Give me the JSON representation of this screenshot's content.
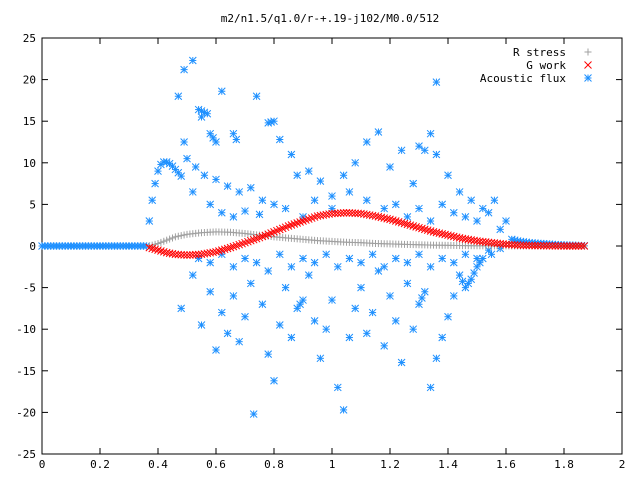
{
  "chart_data": {
    "type": "scatter",
    "title": "m2/n1.5/q1.0/r-+.19-j102/M0.0/512",
    "xlabel": "",
    "ylabel": "",
    "xlim": [
      0,
      2
    ],
    "ylim": [
      -25,
      25
    ],
    "x_ticks": [
      "0",
      "0.2",
      "0.4",
      "0.6",
      "0.8",
      "1",
      "1.2",
      "1.4",
      "1.6",
      "1.8",
      "2"
    ],
    "y_ticks": [
      "25",
      "20",
      "15",
      "10",
      "5",
      "0",
      "-5",
      "-10",
      "-15",
      "-20",
      "-25"
    ],
    "grid": false,
    "legend": "top-right",
    "series": [
      {
        "name": "R stress",
        "marker": "+",
        "color": "#a0a0a0",
        "points": [
          [
            0.37,
            0.0
          ],
          [
            0.4,
            0.3
          ],
          [
            0.43,
            0.7
          ],
          [
            0.46,
            1.1
          ],
          [
            0.5,
            1.4
          ],
          [
            0.55,
            1.6
          ],
          [
            0.6,
            1.7
          ],
          [
            0.65,
            1.65
          ],
          [
            0.7,
            1.5
          ],
          [
            0.75,
            1.3
          ],
          [
            0.8,
            1.1
          ],
          [
            0.85,
            0.95
          ],
          [
            0.9,
            0.8
          ],
          [
            0.95,
            0.65
          ],
          [
            1.0,
            0.55
          ],
          [
            1.05,
            0.45
          ],
          [
            1.1,
            0.4
          ],
          [
            1.15,
            0.3
          ],
          [
            1.2,
            0.25
          ],
          [
            1.25,
            0.2
          ],
          [
            1.3,
            0.15
          ],
          [
            1.35,
            0.1
          ],
          [
            1.4,
            0.08
          ],
          [
            1.45,
            0.05
          ],
          [
            1.5,
            0.03
          ],
          [
            1.55,
            0.02
          ],
          [
            1.6,
            0.01
          ],
          [
            1.7,
            0.0
          ],
          [
            1.8,
            0.0
          ],
          [
            1.87,
            0.0
          ]
        ]
      },
      {
        "name": "G work",
        "marker": "x",
        "color": "#ff0000",
        "points": [
          [
            0.37,
            -0.2
          ],
          [
            0.4,
            -0.5
          ],
          [
            0.43,
            -0.8
          ],
          [
            0.46,
            -1.0
          ],
          [
            0.5,
            -1.1
          ],
          [
            0.55,
            -1.0
          ],
          [
            0.6,
            -0.7
          ],
          [
            0.65,
            -0.2
          ],
          [
            0.7,
            0.4
          ],
          [
            0.75,
            1.0
          ],
          [
            0.8,
            1.7
          ],
          [
            0.85,
            2.4
          ],
          [
            0.9,
            3.0
          ],
          [
            0.95,
            3.6
          ],
          [
            1.0,
            3.9
          ],
          [
            1.05,
            4.0
          ],
          [
            1.1,
            3.9
          ],
          [
            1.15,
            3.6
          ],
          [
            1.2,
            3.2
          ],
          [
            1.25,
            2.7
          ],
          [
            1.3,
            2.2
          ],
          [
            1.35,
            1.7
          ],
          [
            1.4,
            1.3
          ],
          [
            1.45,
            0.9
          ],
          [
            1.5,
            0.6
          ],
          [
            1.55,
            0.4
          ],
          [
            1.6,
            0.2
          ],
          [
            1.65,
            0.1
          ],
          [
            1.7,
            0.05
          ],
          [
            1.8,
            0.0
          ],
          [
            1.87,
            0.0
          ]
        ]
      },
      {
        "name": "Acoustic flux",
        "marker": "*",
        "color": "#1e90ff",
        "points": [
          [
            0.0,
            0.0
          ],
          [
            0.04,
            0.0
          ],
          [
            0.08,
            0.0
          ],
          [
            0.12,
            0.0
          ],
          [
            0.16,
            0.0
          ],
          [
            0.2,
            0.0
          ],
          [
            0.24,
            0.0
          ],
          [
            0.28,
            0.0
          ],
          [
            0.32,
            0.0
          ],
          [
            0.36,
            0.0
          ],
          [
            0.37,
            3.0
          ],
          [
            0.38,
            5.5
          ],
          [
            0.39,
            7.5
          ],
          [
            0.4,
            9.0
          ],
          [
            0.41,
            9.8
          ],
          [
            0.42,
            10.1
          ],
          [
            0.43,
            10.1
          ],
          [
            0.44,
            9.9
          ],
          [
            0.45,
            9.6
          ],
          [
            0.46,
            9.2
          ],
          [
            0.47,
            8.8
          ],
          [
            0.48,
            8.4
          ],
          [
            0.47,
            18.0
          ],
          [
            0.49,
            21.2
          ],
          [
            0.49,
            12.5
          ],
          [
            0.52,
            22.3
          ],
          [
            0.55,
            15.5
          ],
          [
            0.54,
            16.4
          ],
          [
            0.57,
            15.9
          ],
          [
            0.58,
            13.5
          ],
          [
            0.6,
            12.5
          ],
          [
            0.62,
            18.6
          ],
          [
            0.66,
            13.5
          ],
          [
            0.67,
            12.8
          ],
          [
            0.74,
            18.0
          ],
          [
            0.78,
            14.8
          ],
          [
            0.8,
            15.0
          ],
          [
            0.5,
            10.5
          ],
          [
            0.53,
            9.5
          ],
          [
            0.56,
            8.5
          ],
          [
            0.6,
            8.0
          ],
          [
            0.64,
            7.2
          ],
          [
            0.68,
            6.5
          ],
          [
            0.72,
            7.0
          ],
          [
            0.76,
            5.5
          ],
          [
            0.82,
            12.8
          ],
          [
            0.86,
            11.0
          ],
          [
            0.88,
            8.5
          ],
          [
            0.92,
            9.0
          ],
          [
            0.96,
            7.8
          ],
          [
            1.0,
            6.0
          ],
          [
            1.04,
            8.5
          ],
          [
            1.08,
            10.0
          ],
          [
            1.12,
            12.5
          ],
          [
            1.16,
            13.7
          ],
          [
            1.2,
            9.5
          ],
          [
            1.24,
            11.5
          ],
          [
            1.28,
            7.5
          ],
          [
            1.32,
            11.5
          ],
          [
            1.34,
            13.5
          ],
          [
            1.36,
            11.0
          ],
          [
            1.4,
            8.5
          ],
          [
            1.44,
            6.5
          ],
          [
            1.48,
            5.5
          ],
          [
            1.52,
            4.5
          ],
          [
            1.56,
            5.5
          ],
          [
            1.6,
            3.0
          ],
          [
            1.36,
            19.7
          ],
          [
            1.3,
            12.0
          ],
          [
            0.52,
            6.5
          ],
          [
            0.58,
            5.0
          ],
          [
            0.62,
            4.0
          ],
          [
            0.66,
            3.5
          ],
          [
            0.7,
            4.2
          ],
          [
            0.75,
            3.8
          ],
          [
            0.8,
            5.0
          ],
          [
            0.84,
            4.5
          ],
          [
            0.9,
            3.5
          ],
          [
            0.94,
            5.5
          ],
          [
            1.0,
            4.5
          ],
          [
            1.06,
            6.5
          ],
          [
            1.12,
            5.5
          ],
          [
            1.18,
            4.5
          ],
          [
            1.22,
            5.0
          ],
          [
            1.26,
            3.5
          ],
          [
            1.3,
            4.5
          ],
          [
            1.34,
            3.0
          ],
          [
            1.38,
            5.0
          ],
          [
            1.42,
            4.0
          ],
          [
            1.46,
            3.5
          ],
          [
            1.5,
            3.0
          ],
          [
            1.54,
            4.0
          ],
          [
            1.58,
            2.0
          ],
          [
            0.48,
            -7.5
          ],
          [
            0.52,
            -3.5
          ],
          [
            0.55,
            -9.5
          ],
          [
            0.58,
            -5.5
          ],
          [
            0.6,
            -12.5
          ],
          [
            0.62,
            -8.0
          ],
          [
            0.64,
            -10.5
          ],
          [
            0.66,
            -6.0
          ],
          [
            0.68,
            -11.5
          ],
          [
            0.7,
            -8.5
          ],
          [
            0.72,
            -4.5
          ],
          [
            0.73,
            -20.2
          ],
          [
            0.76,
            -7.0
          ],
          [
            0.78,
            -13.0
          ],
          [
            0.8,
            -16.2
          ],
          [
            0.82,
            -9.5
          ],
          [
            0.84,
            -5.0
          ],
          [
            0.86,
            -11.0
          ],
          [
            0.88,
            -7.5
          ],
          [
            0.9,
            -6.5
          ],
          [
            0.92,
            -3.5
          ],
          [
            0.94,
            -9.0
          ],
          [
            0.96,
            -13.5
          ],
          [
            0.98,
            -10.0
          ],
          [
            1.0,
            -6.5
          ],
          [
            1.02,
            -17.0
          ],
          [
            1.04,
            -19.7
          ],
          [
            1.06,
            -11.0
          ],
          [
            1.08,
            -7.5
          ],
          [
            1.1,
            -5.0
          ],
          [
            1.12,
            -10.5
          ],
          [
            1.14,
            -8.0
          ],
          [
            1.16,
            -3.0
          ],
          [
            1.18,
            -12.0
          ],
          [
            1.2,
            -6.0
          ],
          [
            1.22,
            -9.0
          ],
          [
            1.24,
            -14.0
          ],
          [
            1.26,
            -4.5
          ],
          [
            1.28,
            -10.0
          ],
          [
            1.3,
            -7.0
          ],
          [
            1.32,
            -5.5
          ],
          [
            1.34,
            -17.0
          ],
          [
            1.36,
            -13.5
          ],
          [
            1.38,
            -11.0
          ],
          [
            1.4,
            -8.5
          ],
          [
            1.42,
            -6.0
          ],
          [
            1.44,
            -3.5
          ],
          [
            1.46,
            -5.0
          ],
          [
            1.48,
            -4.0
          ],
          [
            1.5,
            -2.5
          ],
          [
            1.52,
            -1.5
          ],
          [
            1.55,
            -1.0
          ],
          [
            0.54,
            -1.5
          ],
          [
            0.58,
            -2.0
          ],
          [
            0.62,
            -1.0
          ],
          [
            0.66,
            -2.5
          ],
          [
            0.7,
            -1.5
          ],
          [
            0.74,
            -2.0
          ],
          [
            0.78,
            -3.0
          ],
          [
            0.82,
            -1.0
          ],
          [
            0.86,
            -2.5
          ],
          [
            0.9,
            -1.5
          ],
          [
            0.94,
            -2.0
          ],
          [
            0.98,
            -1.0
          ],
          [
            1.02,
            -2.5
          ],
          [
            1.06,
            -1.5
          ],
          [
            1.1,
            -2.0
          ],
          [
            1.14,
            -1.0
          ],
          [
            1.18,
            -2.5
          ],
          [
            1.22,
            -1.5
          ],
          [
            1.26,
            -2.0
          ],
          [
            1.3,
            -1.0
          ],
          [
            1.34,
            -2.5
          ],
          [
            1.38,
            -1.5
          ],
          [
            1.42,
            -2.0
          ],
          [
            1.46,
            -1.0
          ],
          [
            1.5,
            -1.5
          ],
          [
            1.54,
            -0.5
          ],
          [
            1.58,
            -0.3
          ],
          [
            1.62,
            0.8
          ],
          [
            1.64,
            0.6
          ],
          [
            1.66,
            0.5
          ],
          [
            1.68,
            0.4
          ],
          [
            1.7,
            0.35
          ],
          [
            1.72,
            0.3
          ],
          [
            1.74,
            0.25
          ],
          [
            1.76,
            0.2
          ],
          [
            1.78,
            0.15
          ],
          [
            1.8,
            0.12
          ],
          [
            1.82,
            0.1
          ],
          [
            1.84,
            0.08
          ],
          [
            1.86,
            0.05
          ],
          [
            1.87,
            0.03
          ]
        ]
      }
    ]
  }
}
